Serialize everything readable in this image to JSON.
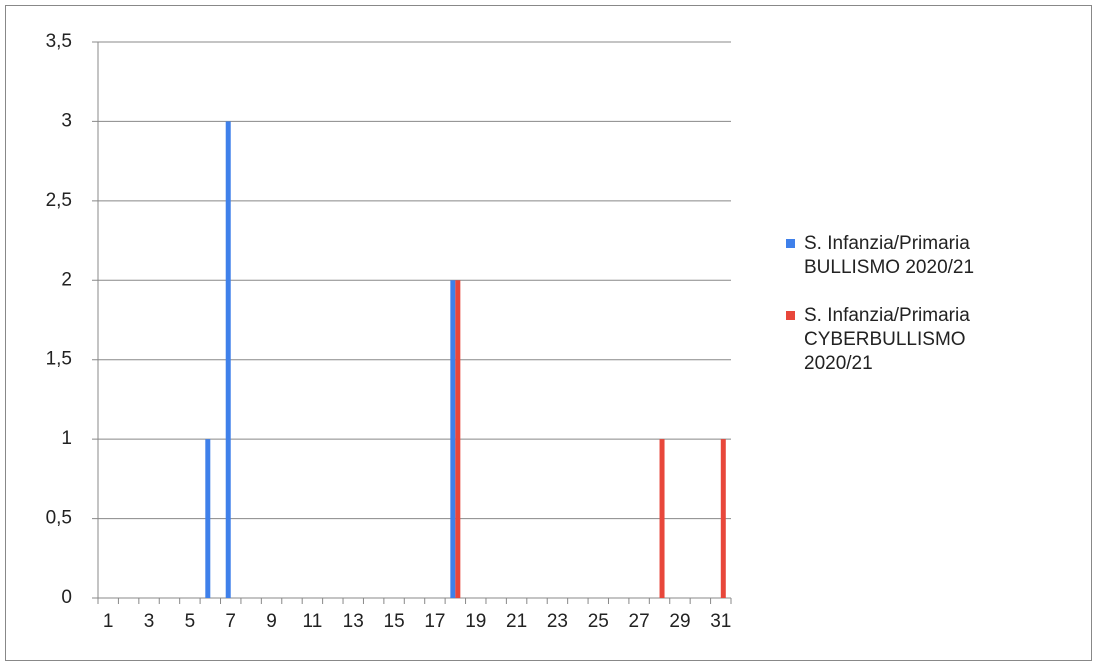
{
  "chart_data": {
    "type": "bar",
    "categories": [
      "1",
      null,
      "3",
      null,
      "5",
      null,
      "7",
      null,
      "9",
      null,
      "11",
      null,
      "13",
      null,
      "15",
      null,
      "17",
      null,
      "19",
      null,
      "21",
      null,
      "23",
      null,
      "25",
      null,
      "27",
      null,
      "29",
      null,
      "31"
    ],
    "series": [
      {
        "name": "S. Infanzia/Primaria BULLISMO 2020/21",
        "color": "#3f80ea",
        "values": [
          0,
          0,
          0,
          0,
          0,
          1,
          3,
          0,
          0,
          0,
          0,
          0,
          0,
          0,
          0,
          0,
          0,
          2,
          0,
          0,
          0,
          0,
          0,
          0,
          0,
          0,
          0,
          0,
          0,
          0,
          0
        ]
      },
      {
        "name": "S. Infanzia/Primaria CYBERBULLISMO 2020/21",
        "color": "#e8473b",
        "values": [
          0,
          0,
          0,
          0,
          0,
          0,
          0,
          0,
          0,
          0,
          0,
          0,
          0,
          0,
          0,
          0,
          0,
          2,
          0,
          0,
          0,
          0,
          0,
          0,
          0,
          0,
          0,
          1,
          0,
          0,
          1
        ]
      }
    ],
    "ylim": [
      0,
      3.5
    ],
    "yticks": [
      0,
      {
        "value": 0.5,
        "label": "0,5"
      },
      1,
      {
        "value": 1.5,
        "label": "1,5"
      },
      2,
      {
        "value": 2.5,
        "label": "2,5"
      },
      3,
      {
        "value": 3.5,
        "label": "3,5"
      }
    ],
    "grid": true,
    "legend": "right"
  }
}
